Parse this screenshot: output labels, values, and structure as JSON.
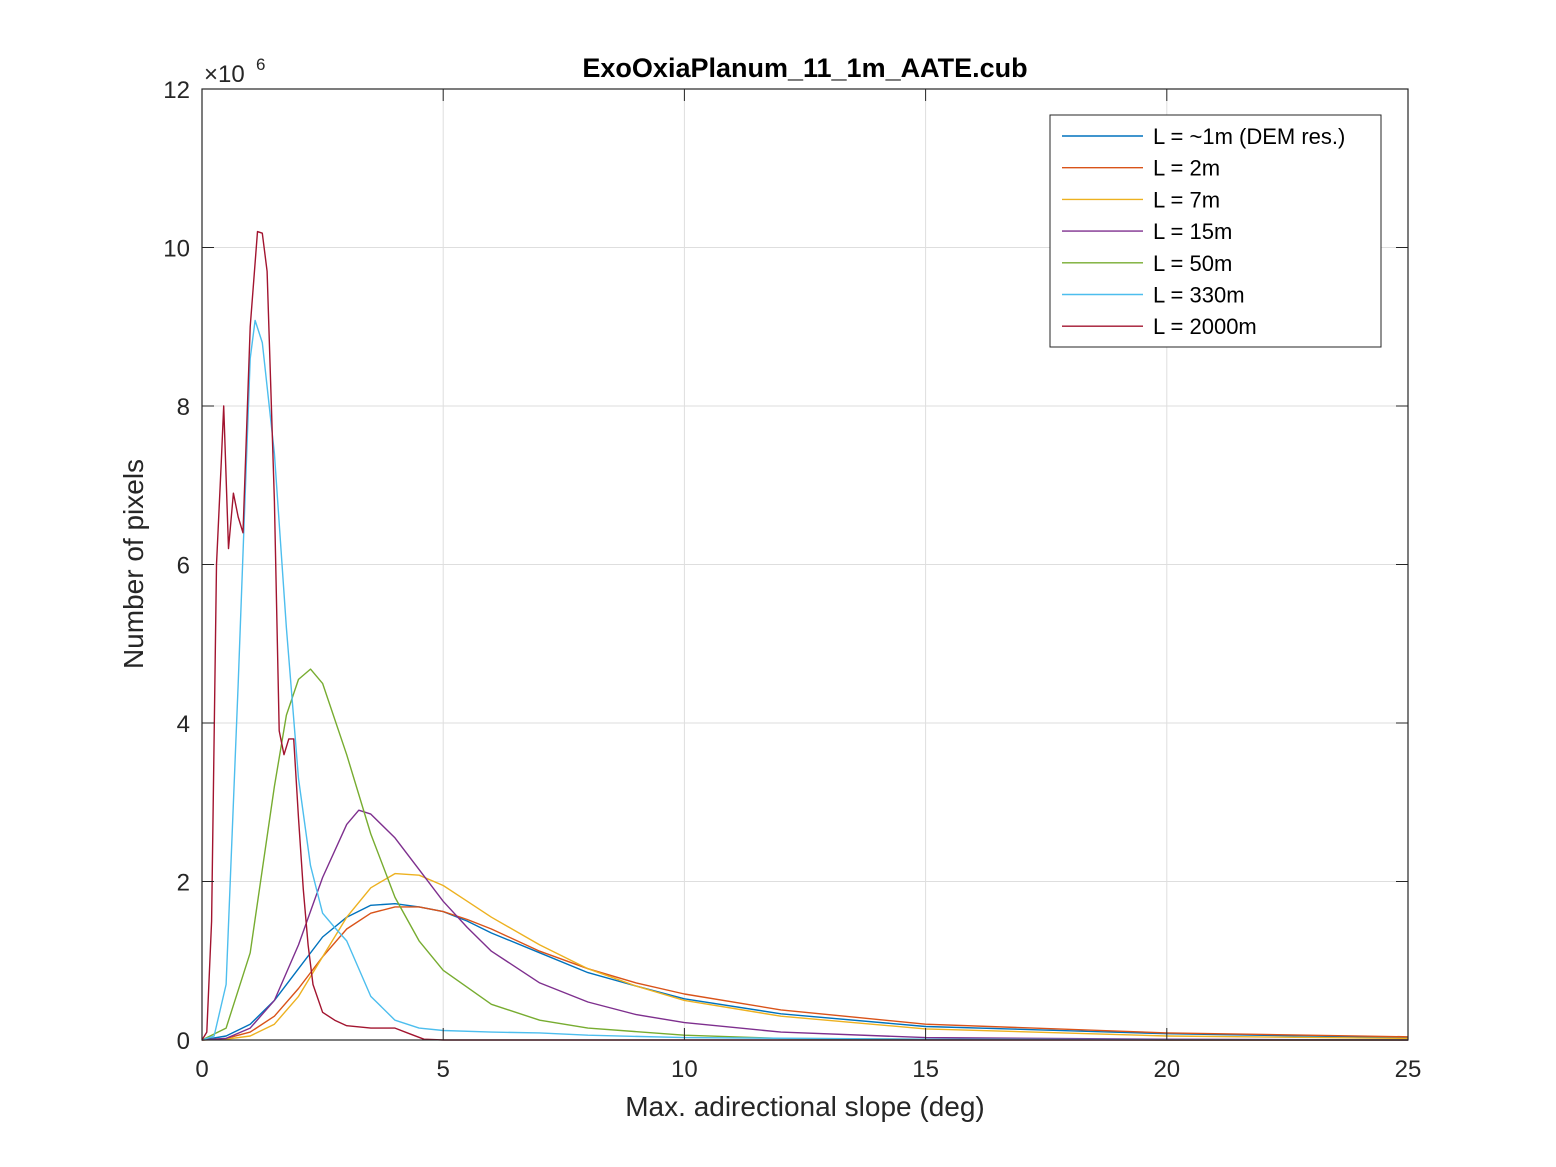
{
  "chart_data": {
    "type": "line",
    "title": "ExoOxiaPlanum_11_1m_AATE.cub",
    "xlabel": "Max. adirectional slope (deg)",
    "ylabel": "Number of pixels",
    "xlim": [
      0,
      25
    ],
    "ylim": [
      0,
      12
    ],
    "y_multiplier": {
      "base": "×10",
      "exponent": "6"
    },
    "y_units": "millions of pixels",
    "xticks": [
      "0",
      "5",
      "10",
      "15",
      "20",
      "25"
    ],
    "yticks": [
      "0",
      "2",
      "4",
      "6",
      "8",
      "10",
      "12"
    ],
    "grid": true,
    "legend_position": "top-right",
    "series": [
      {
        "name": "L = ~1m (DEM res.)",
        "color": "#0072BD",
        "x": [
          0,
          0.5,
          1,
          1.5,
          2,
          2.5,
          3,
          3.5,
          4,
          4.5,
          5,
          5.5,
          6,
          7,
          8,
          9,
          10,
          12,
          15,
          20,
          25
        ],
        "y": [
          0,
          0.05,
          0.2,
          0.5,
          0.9,
          1.3,
          1.55,
          1.7,
          1.72,
          1.68,
          1.62,
          1.5,
          1.35,
          1.1,
          0.85,
          0.68,
          0.52,
          0.33,
          0.17,
          0.08,
          0.03
        ]
      },
      {
        "name": "L = 2m",
        "color": "#D95319",
        "x": [
          0,
          0.5,
          1,
          1.5,
          2,
          2.5,
          3,
          3.5,
          4,
          4.5,
          5,
          5.5,
          6,
          7,
          8,
          9,
          10,
          12,
          15,
          20,
          25
        ],
        "y": [
          0,
          0.02,
          0.1,
          0.3,
          0.65,
          1.05,
          1.4,
          1.6,
          1.68,
          1.68,
          1.62,
          1.52,
          1.4,
          1.12,
          0.9,
          0.72,
          0.58,
          0.38,
          0.2,
          0.09,
          0.04
        ]
      },
      {
        "name": "L = 7m",
        "color": "#EDB120",
        "x": [
          0,
          0.5,
          1,
          1.5,
          2,
          2.5,
          3,
          3.5,
          4,
          4.5,
          5,
          5.5,
          6,
          7,
          8,
          9,
          10,
          12,
          15,
          20,
          25
        ],
        "y": [
          0,
          0.01,
          0.05,
          0.2,
          0.55,
          1.05,
          1.55,
          1.92,
          2.1,
          2.08,
          1.95,
          1.75,
          1.55,
          1.2,
          0.9,
          0.68,
          0.5,
          0.3,
          0.14,
          0.05,
          0.02
        ]
      },
      {
        "name": "L = 15m",
        "color": "#7E2F8E",
        "x": [
          0,
          0.5,
          1,
          1.5,
          2,
          2.5,
          3,
          3.25,
          3.5,
          4,
          4.5,
          5,
          5.5,
          6,
          7,
          8,
          9,
          10,
          12,
          15,
          20,
          25
        ],
        "y": [
          0,
          0.02,
          0.15,
          0.5,
          1.2,
          2.05,
          2.72,
          2.9,
          2.85,
          2.55,
          2.15,
          1.75,
          1.42,
          1.12,
          0.72,
          0.48,
          0.32,
          0.22,
          0.1,
          0.03,
          0.01,
          0
        ]
      },
      {
        "name": "L = 50m",
        "color": "#77AC30",
        "x": [
          0,
          0.5,
          1,
          1.5,
          1.75,
          2,
          2.25,
          2.5,
          3,
          3.5,
          4,
          4.5,
          5,
          6,
          7,
          8,
          10,
          12,
          15,
          20,
          25
        ],
        "y": [
          0,
          0.15,
          1.1,
          3.2,
          4.1,
          4.55,
          4.68,
          4.5,
          3.6,
          2.6,
          1.8,
          1.25,
          0.88,
          0.45,
          0.25,
          0.15,
          0.06,
          0.02,
          0.01,
          0,
          0
        ]
      },
      {
        "name": "L = 330m",
        "color": "#4DBEEE",
        "x": [
          0,
          0.25,
          0.5,
          0.75,
          1,
          1.1,
          1.25,
          1.5,
          1.75,
          2,
          2.25,
          2.5,
          2.75,
          3,
          3.5,
          4,
          4.5,
          5,
          6,
          7,
          8,
          10,
          15,
          25
        ],
        "y": [
          0,
          0.05,
          0.7,
          4.5,
          8.6,
          9.08,
          8.8,
          7.4,
          5.2,
          3.3,
          2.2,
          1.6,
          1.42,
          1.25,
          0.55,
          0.25,
          0.15,
          0.12,
          0.1,
          0.09,
          0.06,
          0.03,
          0.01,
          0
        ]
      },
      {
        "name": "L = 2000m",
        "color": "#A2142F",
        "x": [
          0,
          0.1,
          0.2,
          0.3,
          0.4,
          0.45,
          0.55,
          0.65,
          0.75,
          0.85,
          1.0,
          1.15,
          1.25,
          1.35,
          1.5,
          1.6,
          1.7,
          1.8,
          1.9,
          2.0,
          2.1,
          2.2,
          2.3,
          2.5,
          2.75,
          3.0,
          3.5,
          4.0,
          4.3,
          4.6,
          5,
          25
        ],
        "y": [
          0,
          0.1,
          1.5,
          6.0,
          7.3,
          8.0,
          6.2,
          6.9,
          6.6,
          6.4,
          9.0,
          10.2,
          10.18,
          9.7,
          6.8,
          3.9,
          3.6,
          3.8,
          3.8,
          2.8,
          1.9,
          1.2,
          0.7,
          0.35,
          0.25,
          0.18,
          0.15,
          0.15,
          0.08,
          0.01,
          0,
          0
        ]
      }
    ]
  }
}
